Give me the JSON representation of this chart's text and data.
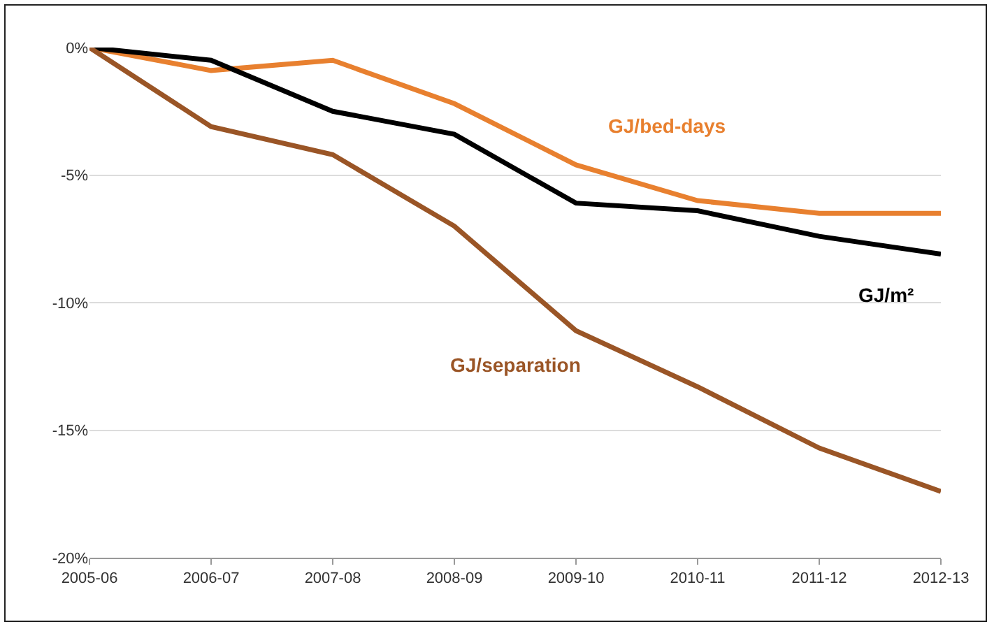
{
  "chart_data": {
    "type": "line",
    "categories": [
      "2005-06",
      "2006-07",
      "2007-08",
      "2008-09",
      "2009-10",
      "2010-11",
      "2011-12",
      "2012-13"
    ],
    "series": [
      {
        "name": "GJ/bed-days",
        "color": "#e8802f",
        "values": [
          0,
          -0.9,
          -0.5,
          -2.2,
          -4.6,
          -6.0,
          -6.5,
          -6.5
        ]
      },
      {
        "name": "GJ/m²",
        "color": "#000000",
        "values": [
          0,
          -0.5,
          -2.5,
          -3.4,
          -6.1,
          -6.4,
          -7.4,
          -8.1
        ]
      },
      {
        "name": "GJ/separation",
        "color": "#9a5526",
        "values": [
          0,
          -3.1,
          -4.2,
          -7.0,
          -11.1,
          -13.3,
          -15.7,
          -17.4
        ]
      }
    ],
    "ylim": [
      -20,
      0
    ],
    "yticks": [
      {
        "value": -20,
        "label": "-20%"
      },
      {
        "value": -15,
        "label": "-15%"
      },
      {
        "value": -10,
        "label": "-10%"
      },
      {
        "value": -5,
        "label": "-5%"
      },
      {
        "value": 0,
        "label": "0%"
      }
    ],
    "grid": "y",
    "legend": false,
    "marker": "none",
    "line_style": "solid"
  }
}
